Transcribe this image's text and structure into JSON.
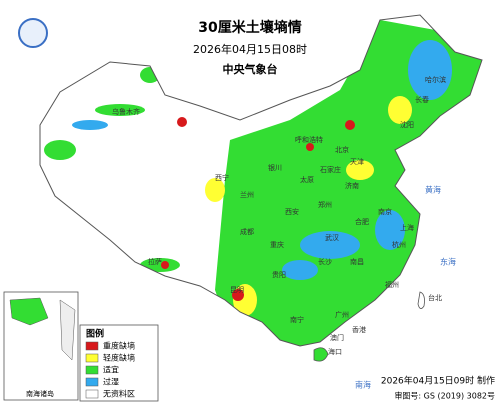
{
  "header": {
    "title": "30厘米土壤墒情",
    "time": "2026年04月15日08时",
    "issuer": "中央气象台"
  },
  "legend": {
    "title": "图例",
    "items": [
      {
        "label": "重度缺墒",
        "color": "#d7191c"
      },
      {
        "label": "轻度缺墒",
        "color": "#ffff33"
      },
      {
        "label": "适宜",
        "color": "#33dd33"
      },
      {
        "label": "过湿",
        "color": "#33aaee"
      },
      {
        "label": "无资料区",
        "color": "#ffffff"
      }
    ]
  },
  "places": [
    "乌鲁木齐",
    "拉萨",
    "西宁",
    "兰州",
    "银川",
    "呼和浩特",
    "北京",
    "天津",
    "石家庄",
    "太原",
    "济南",
    "郑州",
    "西安",
    "成都",
    "重庆",
    "武汉",
    "合肥",
    "南京",
    "上海",
    "杭州",
    "长沙",
    "南昌",
    "福州",
    "贵阳",
    "昆明",
    "南宁",
    "广州",
    "香港",
    "澳门",
    "台北",
    "海口",
    "沈阳",
    "长春",
    "哈尔滨"
  ],
  "seas": [
    "黄海",
    "东海",
    "南海"
  ],
  "inset": "南海诸岛",
  "footer": {
    "made": "2026年04月15日09时 制作",
    "approval": "审图号: GS (2019) 3082号"
  }
}
